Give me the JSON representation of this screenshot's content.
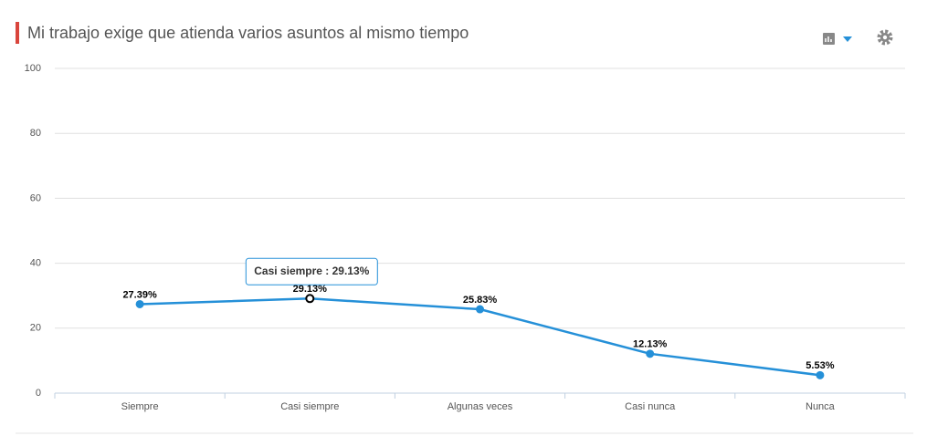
{
  "chart_data": {
    "type": "line",
    "title": "Mi trabajo exige que atienda varios asuntos al mismo tiempo",
    "categories": [
      "Siempre",
      "Casi siempre",
      "Algunas veces",
      "Casi nunca",
      "Nunca"
    ],
    "values": [
      27.39,
      29.13,
      25.83,
      12.13,
      5.53
    ],
    "value_labels": [
      "27.39%",
      "29.13%",
      "25.83%",
      "12.13%",
      "5.53%"
    ],
    "color": "#2590d8",
    "ylim": [
      0,
      100
    ],
    "yticks": [
      0,
      20,
      40,
      60,
      80,
      100
    ],
    "grid": true,
    "tooltip": {
      "index": 1,
      "text": "Casi siempre : 29.13%"
    }
  }
}
